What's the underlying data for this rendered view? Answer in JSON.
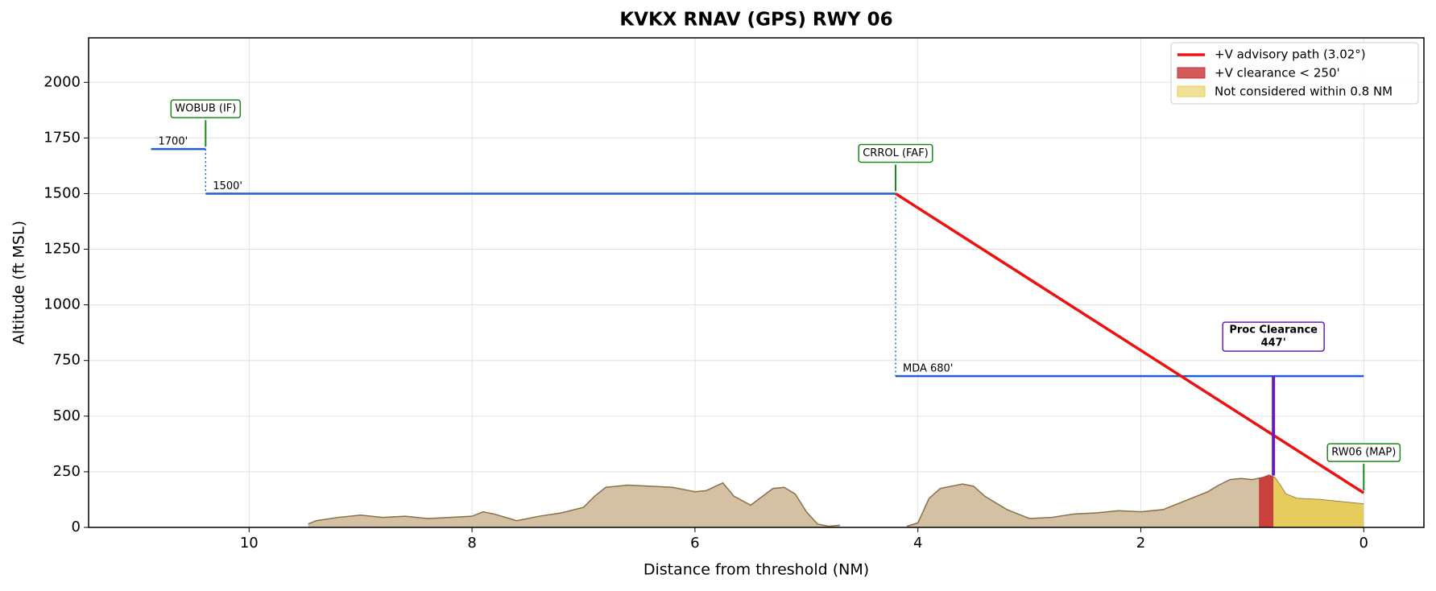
{
  "chart_data": {
    "type": "approach-profile",
    "title": "KVKX  RNAV (GPS) RWY 06",
    "xlabel": "Distance from threshold (NM)",
    "ylabel": "Altitude (ft MSL)",
    "xlim": [
      11.44,
      -0.54
    ],
    "ylim": [
      0,
      2200
    ],
    "xticks": [
      10,
      8,
      6,
      4,
      2,
      0
    ],
    "yticks": [
      0,
      250,
      500,
      750,
      1000,
      1250,
      1500,
      1750,
      2000
    ],
    "grid": true,
    "legend": "upper right",
    "segments": [
      {
        "label": "1700'",
        "value": 1700,
        "x": [
          10.88,
          10.39
        ]
      },
      {
        "label": "1500'",
        "value": 1500,
        "x": [
          10.39,
          4.2
        ]
      },
      {
        "label": "MDA 680'",
        "value": 680,
        "x": [
          4.2,
          0
        ]
      }
    ],
    "segment_color": "#1f5fcf",
    "series": [
      {
        "name": "+V advisory path (3.02°)",
        "color": "#ee1111",
        "x": [
          4.2,
          0
        ],
        "values": [
          1500,
          155
        ]
      }
    ],
    "regions": [
      {
        "name": "+V clearance < 250'",
        "color": "#c83232",
        "x": [
          0.94,
          0.81
        ]
      },
      {
        "name": "Not considered within 0.8 NM",
        "color": "#e8cc55",
        "x": [
          0.81,
          0
        ]
      }
    ],
    "terrain": {
      "color": "#d4c0a2",
      "edge": "#8b6f47",
      "x": [
        9.47,
        9.4,
        9.2,
        9.0,
        8.8,
        8.6,
        8.4,
        8.2,
        8.0,
        7.9,
        7.8,
        7.6,
        7.4,
        7.2,
        7.0,
        6.9,
        6.8,
        6.6,
        6.4,
        6.2,
        6.0,
        5.9,
        5.75,
        5.65,
        5.5,
        5.3,
        5.2,
        5.1,
        5.0,
        4.9,
        4.8,
        4.7,
        4.4,
        4.1,
        4.0,
        3.9,
        3.8,
        3.6,
        3.5,
        3.4,
        3.2,
        3.0,
        2.8,
        2.6,
        2.4,
        2.2,
        2.0,
        1.8,
        1.6,
        1.4,
        1.3,
        1.2,
        1.1,
        1.0,
        0.9,
        0.85,
        0.8,
        0.75,
        0.7,
        0.6,
        0.4,
        0.2,
        0.1,
        0.0
      ],
      "values": [
        15,
        30,
        45,
        55,
        45,
        50,
        40,
        45,
        50,
        70,
        60,
        30,
        50,
        65,
        90,
        140,
        180,
        190,
        185,
        180,
        160,
        165,
        200,
        140,
        100,
        175,
        180,
        150,
        70,
        15,
        5,
        10,
        null,
        5,
        20,
        130,
        175,
        195,
        185,
        140,
        80,
        40,
        45,
        60,
        65,
        75,
        70,
        80,
        120,
        160,
        190,
        215,
        220,
        215,
        225,
        235,
        225,
        190,
        150,
        130,
        125,
        115,
        110,
        105
      ]
    },
    "fixes": [
      {
        "label": "WOBUB (IF)",
        "x": 10.39,
        "altitude": 1700
      },
      {
        "label": "CRROL (FAF)",
        "x": 4.2,
        "altitude": 1500
      },
      {
        "label": "RW06 (MAP)",
        "x": 0,
        "altitude": 155
      }
    ],
    "fix_color": "#1a8a1a",
    "clearance": {
      "label": "Proc Clearance",
      "value_label": "447'",
      "value": 447,
      "base": 233,
      "x": 0.81,
      "color": "#6a1bc0"
    }
  }
}
